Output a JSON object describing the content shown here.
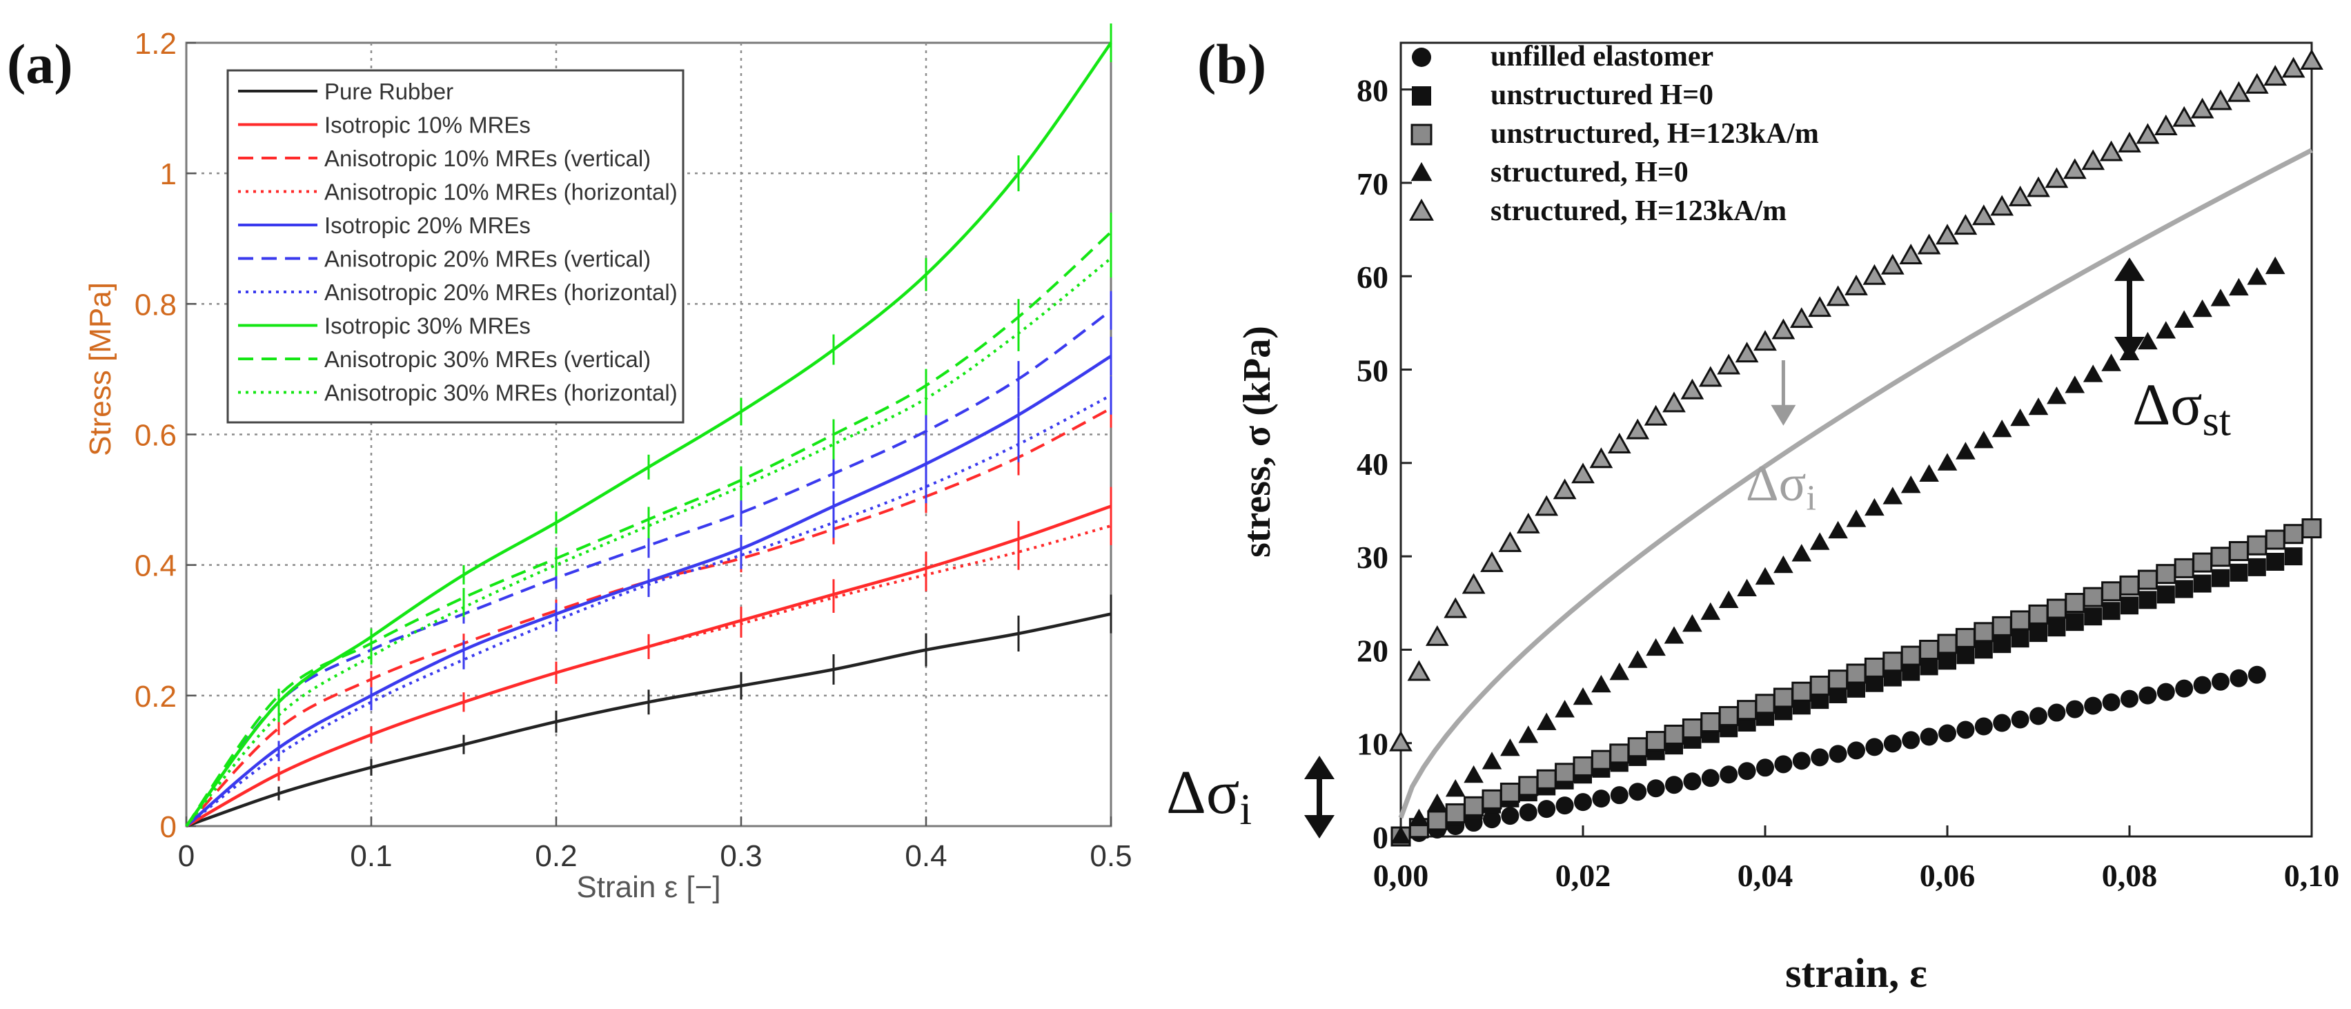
{
  "panel_labels": {
    "a": "(a)",
    "b": "(b)"
  },
  "colors": {
    "black": "#111111",
    "red": "#ff2a2a",
    "blue": "#3a3aee",
    "green": "#14e614",
    "grey": "#a8a8a8",
    "pure": "#222222",
    "axis_a": "#6b6b6b"
  },
  "chart_data": [
    {
      "id": "a",
      "type": "line",
      "xlabel": "Strain ε [−]",
      "ylabel": "Stress [MPa]",
      "xlim": [
        0,
        0.5
      ],
      "ylim": [
        0,
        1.2
      ],
      "grid": true,
      "legend_position": "top-left",
      "xticks": [
        {
          "v": 0,
          "label": "0"
        },
        {
          "v": 0.1,
          "label": "0.1"
        },
        {
          "v": 0.2,
          "label": "0.2"
        },
        {
          "v": 0.3,
          "label": "0.3"
        },
        {
          "v": 0.4,
          "label": "0.4"
        },
        {
          "v": 0.5,
          "label": "0.5"
        }
      ],
      "yticks": [
        {
          "v": 0,
          "label": "0"
        },
        {
          "v": 0.2,
          "label": "0.2"
        },
        {
          "v": 0.4,
          "label": "0.4"
        },
        {
          "v": 0.6,
          "label": "0.6"
        },
        {
          "v": 0.8,
          "label": "0.8"
        },
        {
          "v": 1.0,
          "label": "1"
        },
        {
          "v": 1.2,
          "label": "1.2"
        }
      ],
      "x": [
        0,
        0.05,
        0.1,
        0.15,
        0.2,
        0.25,
        0.3,
        0.35,
        0.4,
        0.45,
        0.5
      ],
      "series": [
        {
          "name": "Pure Rubber",
          "color": "pure",
          "dash": "solid",
          "values": [
            0,
            0.05,
            0.09,
            0.125,
            0.16,
            0.19,
            0.215,
            0.24,
            0.27,
            0.295,
            0.325
          ]
        },
        {
          "name": "Isotropic 10% MREs",
          "color": "red",
          "dash": "solid",
          "values": [
            0,
            0.08,
            0.14,
            0.19,
            0.235,
            0.275,
            0.315,
            0.355,
            0.395,
            0.44,
            0.49
          ]
        },
        {
          "name": "Anisotropic 10% MREs (vertical)",
          "color": "red",
          "dash": "dashed",
          "values": [
            0,
            0.15,
            0.225,
            0.28,
            0.33,
            0.375,
            0.41,
            0.455,
            0.505,
            0.565,
            0.64
          ]
        },
        {
          "name": "Anisotropic 10% MREs (horizontal)",
          "color": "red",
          "dash": "dotted",
          "values": [
            0,
            0.08,
            0.14,
            0.19,
            0.235,
            0.275,
            0.31,
            0.35,
            0.385,
            0.42,
            0.46
          ]
        },
        {
          "name": "Isotropic 20% MREs",
          "color": "blue",
          "dash": "solid",
          "values": [
            0,
            0.12,
            0.2,
            0.27,
            0.325,
            0.375,
            0.425,
            0.49,
            0.555,
            0.63,
            0.72
          ]
        },
        {
          "name": "Anisotropic 20% MREs (vertical)",
          "color": "blue",
          "dash": "dashed",
          "values": [
            0,
            0.19,
            0.27,
            0.325,
            0.38,
            0.43,
            0.48,
            0.54,
            0.605,
            0.685,
            0.79
          ]
        },
        {
          "name": "Anisotropic 20% MREs (horizontal)",
          "color": "blue",
          "dash": "dotted",
          "values": [
            0,
            0.11,
            0.19,
            0.255,
            0.315,
            0.37,
            0.415,
            0.465,
            0.52,
            0.585,
            0.66
          ]
        },
        {
          "name": "Isotropic 30% MREs",
          "color": "green",
          "dash": "solid",
          "values": [
            0,
            0.19,
            0.29,
            0.385,
            0.465,
            0.55,
            0.635,
            0.73,
            0.845,
            1.0,
            1.2
          ]
        },
        {
          "name": "Anisotropic 30% MREs (vertical)",
          "color": "green",
          "dash": "dashed",
          "values": [
            0,
            0.2,
            0.28,
            0.35,
            0.41,
            0.47,
            0.53,
            0.6,
            0.675,
            0.78,
            0.91
          ]
        },
        {
          "name": "Anisotropic 30% MREs (horizontal)",
          "color": "green",
          "dash": "dotted",
          "values": [
            0,
            0.17,
            0.26,
            0.335,
            0.4,
            0.46,
            0.52,
            0.585,
            0.655,
            0.755,
            0.87
          ]
        }
      ]
    },
    {
      "id": "b",
      "type": "scatter",
      "xlabel": "strain, ε",
      "ylabel": "stress, σ (kPa)",
      "xlim": [
        0,
        0.1
      ],
      "ylim": [
        0,
        85
      ],
      "grid": false,
      "legend_position": "top-left",
      "xticks": [
        {
          "v": 0,
          "label": "0,00"
        },
        {
          "v": 0.02,
          "label": "0,02"
        },
        {
          "v": 0.04,
          "label": "0,04"
        },
        {
          "v": 0.06,
          "label": "0,06"
        },
        {
          "v": 0.08,
          "label": "0,08"
        },
        {
          "v": 0.1,
          "label": "0,10"
        }
      ],
      "yticks": [
        {
          "v": 0,
          "label": "0"
        },
        {
          "v": 10,
          "label": "10"
        },
        {
          "v": 20,
          "label": "20"
        },
        {
          "v": 30,
          "label": "30"
        },
        {
          "v": 40,
          "label": "40"
        },
        {
          "v": 50,
          "label": "50"
        },
        {
          "v": 60,
          "label": "60"
        },
        {
          "v": 70,
          "label": "70"
        },
        {
          "v": 80,
          "label": "80"
        }
      ],
      "series": [
        {
          "name": "unfilled elastomer",
          "marker": "circle",
          "x_max": 0.095,
          "y_end": 17.5,
          "exponent": 1.0,
          "step": 0.002
        },
        {
          "name": "unstructured H=0",
          "marker": "square",
          "x_max": 0.098,
          "y_end": 30,
          "exponent": 0.95,
          "step": 0.002
        },
        {
          "name": "unstructured, H=123kA/m",
          "marker": "square-hatched",
          "x_max": 0.1,
          "y_end": 33,
          "exponent": 0.92,
          "step": 0.002
        },
        {
          "name": "structured, H=0",
          "marker": "triangle",
          "x_max": 0.096,
          "y_end": 61,
          "exponent": 0.9,
          "step": 0.002
        },
        {
          "name": "structured, H=123kA/m",
          "marker": "triangle-open",
          "x_max": 0.1,
          "y_end": 83,
          "y_start": 10,
          "exponent": 0.58,
          "step": 0.002
        }
      ],
      "reference_curve": {
        "name": "grey reference curve",
        "x_max": 0.1,
        "y_start": 2,
        "y_end": 73.5,
        "exponent": 0.7
      },
      "annotations": {
        "delta_st": {
          "base": "Δσ",
          "sub": "st",
          "x": 0.08,
          "y_from": 62,
          "y_to": 51
        },
        "delta_i_grey": {
          "base": "Δσ",
          "sub": "i",
          "x": 0.042,
          "y_from": 51,
          "y_to": 44
        },
        "delta_i_left": {
          "base": "Δσ",
          "sub": "i"
        }
      }
    }
  ]
}
